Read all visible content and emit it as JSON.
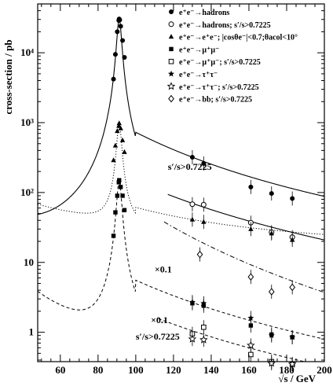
{
  "chart_data": {
    "type": "scatter",
    "xlabel": "√s / GeV",
    "ylabel": "cross-section / pb",
    "xlim": [
      48,
      200
    ],
    "ylim": [
      0.38,
      50000
    ],
    "yscale": "log",
    "grid": false,
    "legend_position": "top-right",
    "x_ticks": [
      60,
      80,
      100,
      120,
      140,
      160,
      180,
      200
    ],
    "y_ticks": [
      {
        "value": 1,
        "label": "1"
      },
      {
        "value": 10,
        "label": "10"
      },
      {
        "value": 100,
        "label": "10²"
      },
      {
        "value": 1000,
        "label": "10³"
      },
      {
        "value": 10000,
        "label": "10⁴"
      }
    ],
    "annotations": [
      {
        "text": "s′/s>0.7225",
        "x": 117,
        "y": 210
      },
      {
        "text": "×0.1",
        "x": 110,
        "y": 7.2
      },
      {
        "text": "×0.1",
        "x": 108,
        "y": 1.35
      },
      {
        "text": "s′/s>0.7225",
        "x": 100,
        "y": 0.78
      }
    ],
    "series": [
      {
        "name": "e⁺e⁻→hadrons",
        "marker": "filled-circle",
        "x": [
          88.2,
          89.2,
          90.2,
          91.0,
          91.2,
          91.5,
          92.0,
          93.0,
          94.0,
          130,
          136,
          161,
          172,
          183
        ],
        "y": [
          4200,
          9500,
          20000,
          29000,
          30500,
          29500,
          24000,
          15000,
          8600,
          320,
          260,
          120,
          97,
          82
        ]
      },
      {
        "name": "e⁺e⁻→hadrons; s′/s>0.7225",
        "marker": "open-circle",
        "x": [
          130,
          136,
          161,
          172,
          183
        ],
        "y": [
          68,
          67,
          37,
          27,
          23
        ]
      },
      {
        "name": "e⁺e⁻→e⁺e⁻; |cosθe⁻|<0.7;θacol<10°",
        "marker": "filled-triangle",
        "x": [
          88.2,
          89.2,
          90.2,
          91.0,
          91.2,
          92.0,
          93.0,
          94.0,
          130,
          136,
          161,
          172,
          183
        ],
        "y": [
          290,
          470,
          760,
          900,
          980,
          830,
          560,
          380,
          41,
          38,
          30,
          26,
          21
        ]
      },
      {
        "name": "e⁺e⁻→μ⁺μ⁻",
        "marker": "filled-square",
        "x": [
          88.2,
          89.2,
          90.2,
          91.0,
          91.2,
          92.0,
          93.0,
          94.0,
          130,
          136,
          161,
          172,
          183
        ],
        "y": [
          24,
          52,
          90,
          140,
          150,
          120,
          90,
          56,
          2.6,
          2.4,
          1.25,
          0.93,
          0.85
        ]
      },
      {
        "name": "e⁺e⁻→μ⁺μ⁻; s′/s>0.7225",
        "marker": "open-square",
        "x": [
          130,
          136,
          161,
          172,
          183
        ],
        "y": [
          0.95,
          1.18,
          0.48,
          0.38,
          0.35
        ]
      },
      {
        "name": "e⁺e⁻→τ⁺τ⁻",
        "marker": "filled-star",
        "x": [
          130,
          136,
          161,
          172,
          183
        ],
        "y": [
          2.7,
          2.6,
          1.6,
          0.9,
          0.85
        ]
      },
      {
        "name": "e⁺e⁻→τ⁺τ⁻; s′/s>0.7225",
        "marker": "open-star",
        "x": [
          130,
          136,
          161,
          172,
          183
        ],
        "y": [
          0.8,
          0.78,
          0.65,
          0.36,
          0.35
        ]
      },
      {
        "name": "e⁺e⁻→bb; s′/s>0.7225",
        "marker": "open-diamond",
        "x": [
          134,
          161,
          172,
          183
        ],
        "y": [
          13,
          6.2,
          3.8,
          4.4
        ]
      }
    ]
  }
}
